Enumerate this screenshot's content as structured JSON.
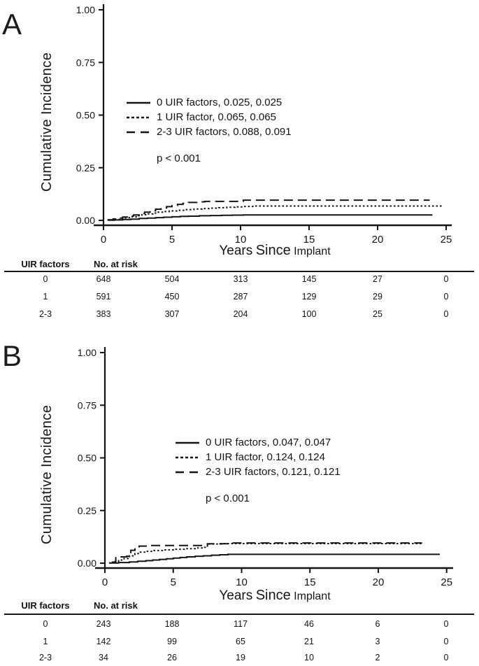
{
  "figure": {
    "background": "#ffffff",
    "line_color": "#141414",
    "panels": [
      {
        "label": "A",
        "ylabel": "Cumulative Incidence",
        "xlabel_words": {
          "w1": "Years",
          "w2": "Since",
          "w3": "Implant"
        },
        "legend": {
          "items": [
            {
              "line": "solid",
              "label": "0 UIR factors, 0.025, 0.025"
            },
            {
              "line": "dotted",
              "label": "1 UIR factor, 0.065, 0.065"
            },
            {
              "line": "dashed",
              "label": "2-3 UIR factors, 0.088, 0.091"
            }
          ],
          "p_value": "p < 0.001"
        },
        "risk_table": {
          "group_header": "UIR factors",
          "risk_header": "No. at risk",
          "rows": [
            {
              "group": "0",
              "counts": [
                "648",
                "504",
                "313",
                "145",
                "27",
                "0"
              ]
            },
            {
              "group": "1",
              "counts": [
                "591",
                "450",
                "287",
                "129",
                "29",
                "0"
              ]
            },
            {
              "group": "2-3",
              "counts": [
                "383",
                "307",
                "204",
                "100",
                "25",
                "0"
              ]
            }
          ]
        }
      },
      {
        "label": "B",
        "ylabel": "Cumulative Incidence",
        "xlabel_words": {
          "w1": "Years",
          "w2": "Since",
          "w3": "Implant"
        },
        "legend": {
          "items": [
            {
              "line": "solid",
              "label": "0 UIR factors, 0.047, 0.047"
            },
            {
              "line": "dotted",
              "label": "1 UIR factor, 0.124, 0.124"
            },
            {
              "line": "dashed",
              "label": "2-3 UIR factors, 0.121, 0.121"
            }
          ],
          "p_value": "p < 0.001"
        },
        "risk_table": {
          "group_header": "UIR factors",
          "risk_header": "No. at risk",
          "rows": [
            {
              "group": "0",
              "counts": [
                "243",
                "188",
                "117",
                "46",
                "6",
                "0"
              ]
            },
            {
              "group": "1",
              "counts": [
                "142",
                "99",
                "65",
                "21",
                "3",
                "0"
              ]
            },
            {
              "group": "2-3",
              "counts": [
                "34",
                "26",
                "19",
                "10",
                "2",
                "0"
              ]
            }
          ]
        }
      }
    ]
  },
  "chart_data": [
    {
      "type": "line",
      "panel": "A",
      "step": "after",
      "xlabel": "Years Since Implant",
      "ylabel": "Cumulative Incidence",
      "xlim": [
        0,
        25
      ],
      "ylim": [
        0,
        1
      ],
      "xticks": [
        0,
        5,
        10,
        15,
        20,
        25
      ],
      "ytick_labels": [
        "0.00",
        "0.25",
        "0.50",
        "0.75",
        "1.00"
      ],
      "grid": false,
      "legend_position": "center",
      "annotation": "p < 0.001",
      "at_risk_times": [
        0,
        5,
        10,
        15,
        20,
        25
      ],
      "series": [
        {
          "name": "0 UIR factors",
          "line": "solid",
          "final_estimates": [
            0.025,
            0.025
          ],
          "at_risk": [
            648,
            504,
            313,
            145,
            27,
            0
          ],
          "points": [
            [
              0.3,
              0.001
            ],
            [
              0.8,
              0.002
            ],
            [
              1.4,
              0.004
            ],
            [
              2,
              0.006
            ],
            [
              2.6,
              0.009
            ],
            [
              3.2,
              0.011
            ],
            [
              3.8,
              0.013
            ],
            [
              4.4,
              0.015
            ],
            [
              5,
              0.017
            ],
            [
              5.6,
              0.019
            ],
            [
              6.2,
              0.02
            ],
            [
              7,
              0.022
            ],
            [
              7.8,
              0.023
            ],
            [
              8.6,
              0.024
            ],
            [
              9.4,
              0.025
            ],
            [
              10.2,
              0.026
            ],
            [
              24,
              0.026
            ]
          ]
        },
        {
          "name": "1 UIR factor",
          "line": "dotted",
          "final_estimates": [
            0.065,
            0.065
          ],
          "at_risk": [
            591,
            450,
            287,
            129,
            29,
            0
          ],
          "points": [
            [
              0.3,
              0.002
            ],
            [
              0.8,
              0.005
            ],
            [
              1.2,
              0.009
            ],
            [
              1.6,
              0.013
            ],
            [
              2,
              0.017
            ],
            [
              2.4,
              0.022
            ],
            [
              2.8,
              0.027
            ],
            [
              3.2,
              0.031
            ],
            [
              3.6,
              0.035
            ],
            [
              4,
              0.039
            ],
            [
              4.4,
              0.042
            ],
            [
              4.8,
              0.045
            ],
            [
              5.4,
              0.048
            ],
            [
              6,
              0.051
            ],
            [
              6.6,
              0.054
            ],
            [
              7.2,
              0.056
            ],
            [
              7.8,
              0.058
            ],
            [
              8.4,
              0.06
            ],
            [
              9,
              0.062
            ],
            [
              9.6,
              0.064
            ],
            [
              10.2,
              0.066
            ],
            [
              11,
              0.068
            ],
            [
              24.7,
              0.068
            ]
          ]
        },
        {
          "name": "2-3 UIR factors",
          "line": "dashed",
          "final_estimates": [
            0.088,
            0.091
          ],
          "at_risk": [
            383,
            307,
            204,
            100,
            25,
            0
          ],
          "points": [
            [
              0.3,
              0.003
            ],
            [
              0.7,
              0.007
            ],
            [
              1,
              0.011
            ],
            [
              1.4,
              0.016
            ],
            [
              1.8,
              0.021
            ],
            [
              2.2,
              0.026
            ],
            [
              2.6,
              0.032
            ],
            [
              3,
              0.039
            ],
            [
              3.4,
              0.046
            ],
            [
              3.8,
              0.053
            ],
            [
              4.2,
              0.059
            ],
            [
              4.6,
              0.065
            ],
            [
              5,
              0.07
            ],
            [
              5.4,
              0.076
            ],
            [
              5.8,
              0.081
            ],
            [
              6.2,
              0.085
            ],
            [
              6.8,
              0.088
            ],
            [
              7.4,
              0.09
            ],
            [
              10.2,
              0.096
            ],
            [
              23.8,
              0.096
            ]
          ]
        }
      ]
    },
    {
      "type": "line",
      "panel": "B",
      "step": "after",
      "xlabel": "Years Since Implant",
      "ylabel": "Cumulative Incidence",
      "xlim": [
        0,
        25
      ],
      "ylim": [
        0,
        1
      ],
      "xticks": [
        0,
        5,
        10,
        15,
        20,
        25
      ],
      "ytick_labels": [
        "0.00",
        "0.25",
        "0.50",
        "0.75",
        "1.00"
      ],
      "grid": false,
      "legend_position": "center",
      "annotation": "p < 0.001",
      "at_risk_times": [
        0,
        5,
        10,
        15,
        20,
        25
      ],
      "series": [
        {
          "name": "0 UIR factors",
          "line": "solid",
          "final_estimates": [
            0.047,
            0.047
          ],
          "at_risk": [
            243,
            188,
            117,
            46,
            6,
            0
          ],
          "points": [
            [
              0.3,
              0.001
            ],
            [
              1,
              0.003
            ],
            [
              1.8,
              0.006
            ],
            [
              2.4,
              0.009
            ],
            [
              3,
              0.012
            ],
            [
              3.5,
              0.015
            ],
            [
              4,
              0.018
            ],
            [
              4.5,
              0.021
            ],
            [
              5,
              0.024
            ],
            [
              5.5,
              0.027
            ],
            [
              6,
              0.03
            ],
            [
              6.6,
              0.033
            ],
            [
              7.2,
              0.035
            ],
            [
              7.8,
              0.038
            ],
            [
              8.4,
              0.04
            ],
            [
              9,
              0.042
            ],
            [
              24.5,
              0.042
            ]
          ]
        },
        {
          "name": "1 UIR factor",
          "line": "dotted",
          "final_estimates": [
            0.124,
            0.124
          ],
          "at_risk": [
            142,
            99,
            65,
            21,
            3,
            0
          ],
          "points": [
            [
              0.7,
              0.008
            ],
            [
              1,
              0.015
            ],
            [
              1.4,
              0.022
            ],
            [
              1.8,
              0.035
            ],
            [
              2.2,
              0.046
            ],
            [
              2.6,
              0.052
            ],
            [
              3,
              0.056
            ],
            [
              3.6,
              0.06
            ],
            [
              4.2,
              0.063
            ],
            [
              5,
              0.066
            ],
            [
              5.8,
              0.069
            ],
            [
              6.6,
              0.072
            ],
            [
              7.3,
              0.075
            ],
            [
              7.5,
              0.091
            ],
            [
              8.5,
              0.093
            ],
            [
              23.2,
              0.093
            ]
          ]
        },
        {
          "name": "2-3 UIR factors",
          "line": "dashed",
          "final_estimates": [
            0.121,
            0.121
          ],
          "at_risk": [
            34,
            26,
            19,
            10,
            2,
            0
          ],
          "points": [
            [
              0.5,
              0.005
            ],
            [
              0.8,
              0.03
            ],
            [
              1.6,
              0.033
            ],
            [
              1.9,
              0.061
            ],
            [
              2.2,
              0.073
            ],
            [
              2.5,
              0.081
            ],
            [
              3.2,
              0.084
            ],
            [
              7.5,
              0.092
            ],
            [
              9,
              0.096
            ],
            [
              23.2,
              0.096
            ]
          ]
        }
      ]
    }
  ]
}
